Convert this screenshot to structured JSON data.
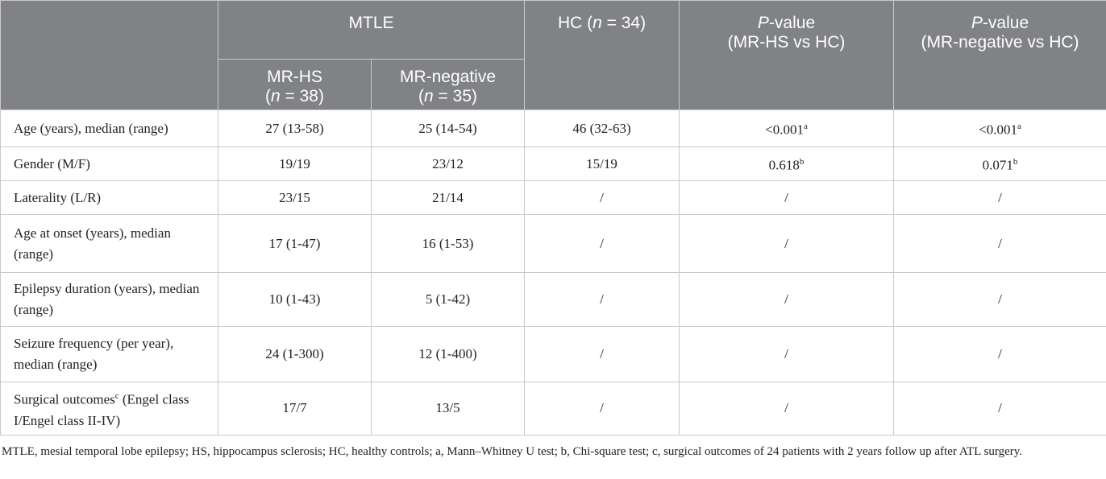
{
  "header": {
    "mtle": "MTLE",
    "mr_hs": {
      "line1": "MR-HS",
      "pre": "(",
      "italic": "n",
      "post": " = 38)"
    },
    "mr_neg": {
      "line1": "MR-negative",
      "pre": "(",
      "italic": "n",
      "post": " = 35)"
    },
    "hc": {
      "pre": "HC (",
      "italic": "n",
      "post": " = 34)"
    },
    "p1": {
      "italic": "P",
      "post": "-value",
      "line2": "(MR-HS vs HC)"
    },
    "p2": {
      "italic": "P",
      "post": "-value",
      "line2": "(MR-negative vs HC)"
    }
  },
  "table": {
    "rows": [
      [
        "Age (years), median (range)",
        "27 (13-58)",
        "25 (14-54)",
        "46 (32-63)",
        {
          "text": "<0.001",
          "sup": "a"
        },
        {
          "text": "<0.001",
          "sup": "a"
        }
      ],
      [
        "Gender (M/F)",
        "19/19",
        "23/12",
        "15/19",
        {
          "text": "0.618",
          "sup": "b"
        },
        {
          "text": "0.071",
          "sup": "b"
        }
      ],
      [
        "Laterality (L/R)",
        "23/15",
        "21/14",
        "/",
        "/",
        "/"
      ],
      [
        "Age at onset (years), median (range)",
        "17 (1-47)",
        "16 (1-53)",
        "/",
        "/",
        "/"
      ],
      [
        "Epilepsy duration (years), median (range)",
        "10 (1-43)",
        "5 (1-42)",
        "/",
        "/",
        "/"
      ],
      [
        "Seizure frequency (per year), median (range)",
        "24 (1-300)",
        "12 (1-400)",
        "/",
        "/",
        "/"
      ],
      [
        {
          "text": "Surgical outcomes",
          "sup": "c",
          "rest": " (Engel class I/Engel class II-IV)"
        },
        "17/7",
        "13/5",
        "/",
        "/",
        "/"
      ]
    ]
  },
  "footnote": "MTLE, mesial temporal lobe epilepsy; HS, hippocampus sclerosis; HC, healthy controls; a, Mann–Whitney U test; b, Chi-square test; c, surgical outcomes of 24 patients with 2 years follow up after ATL surgery."
}
